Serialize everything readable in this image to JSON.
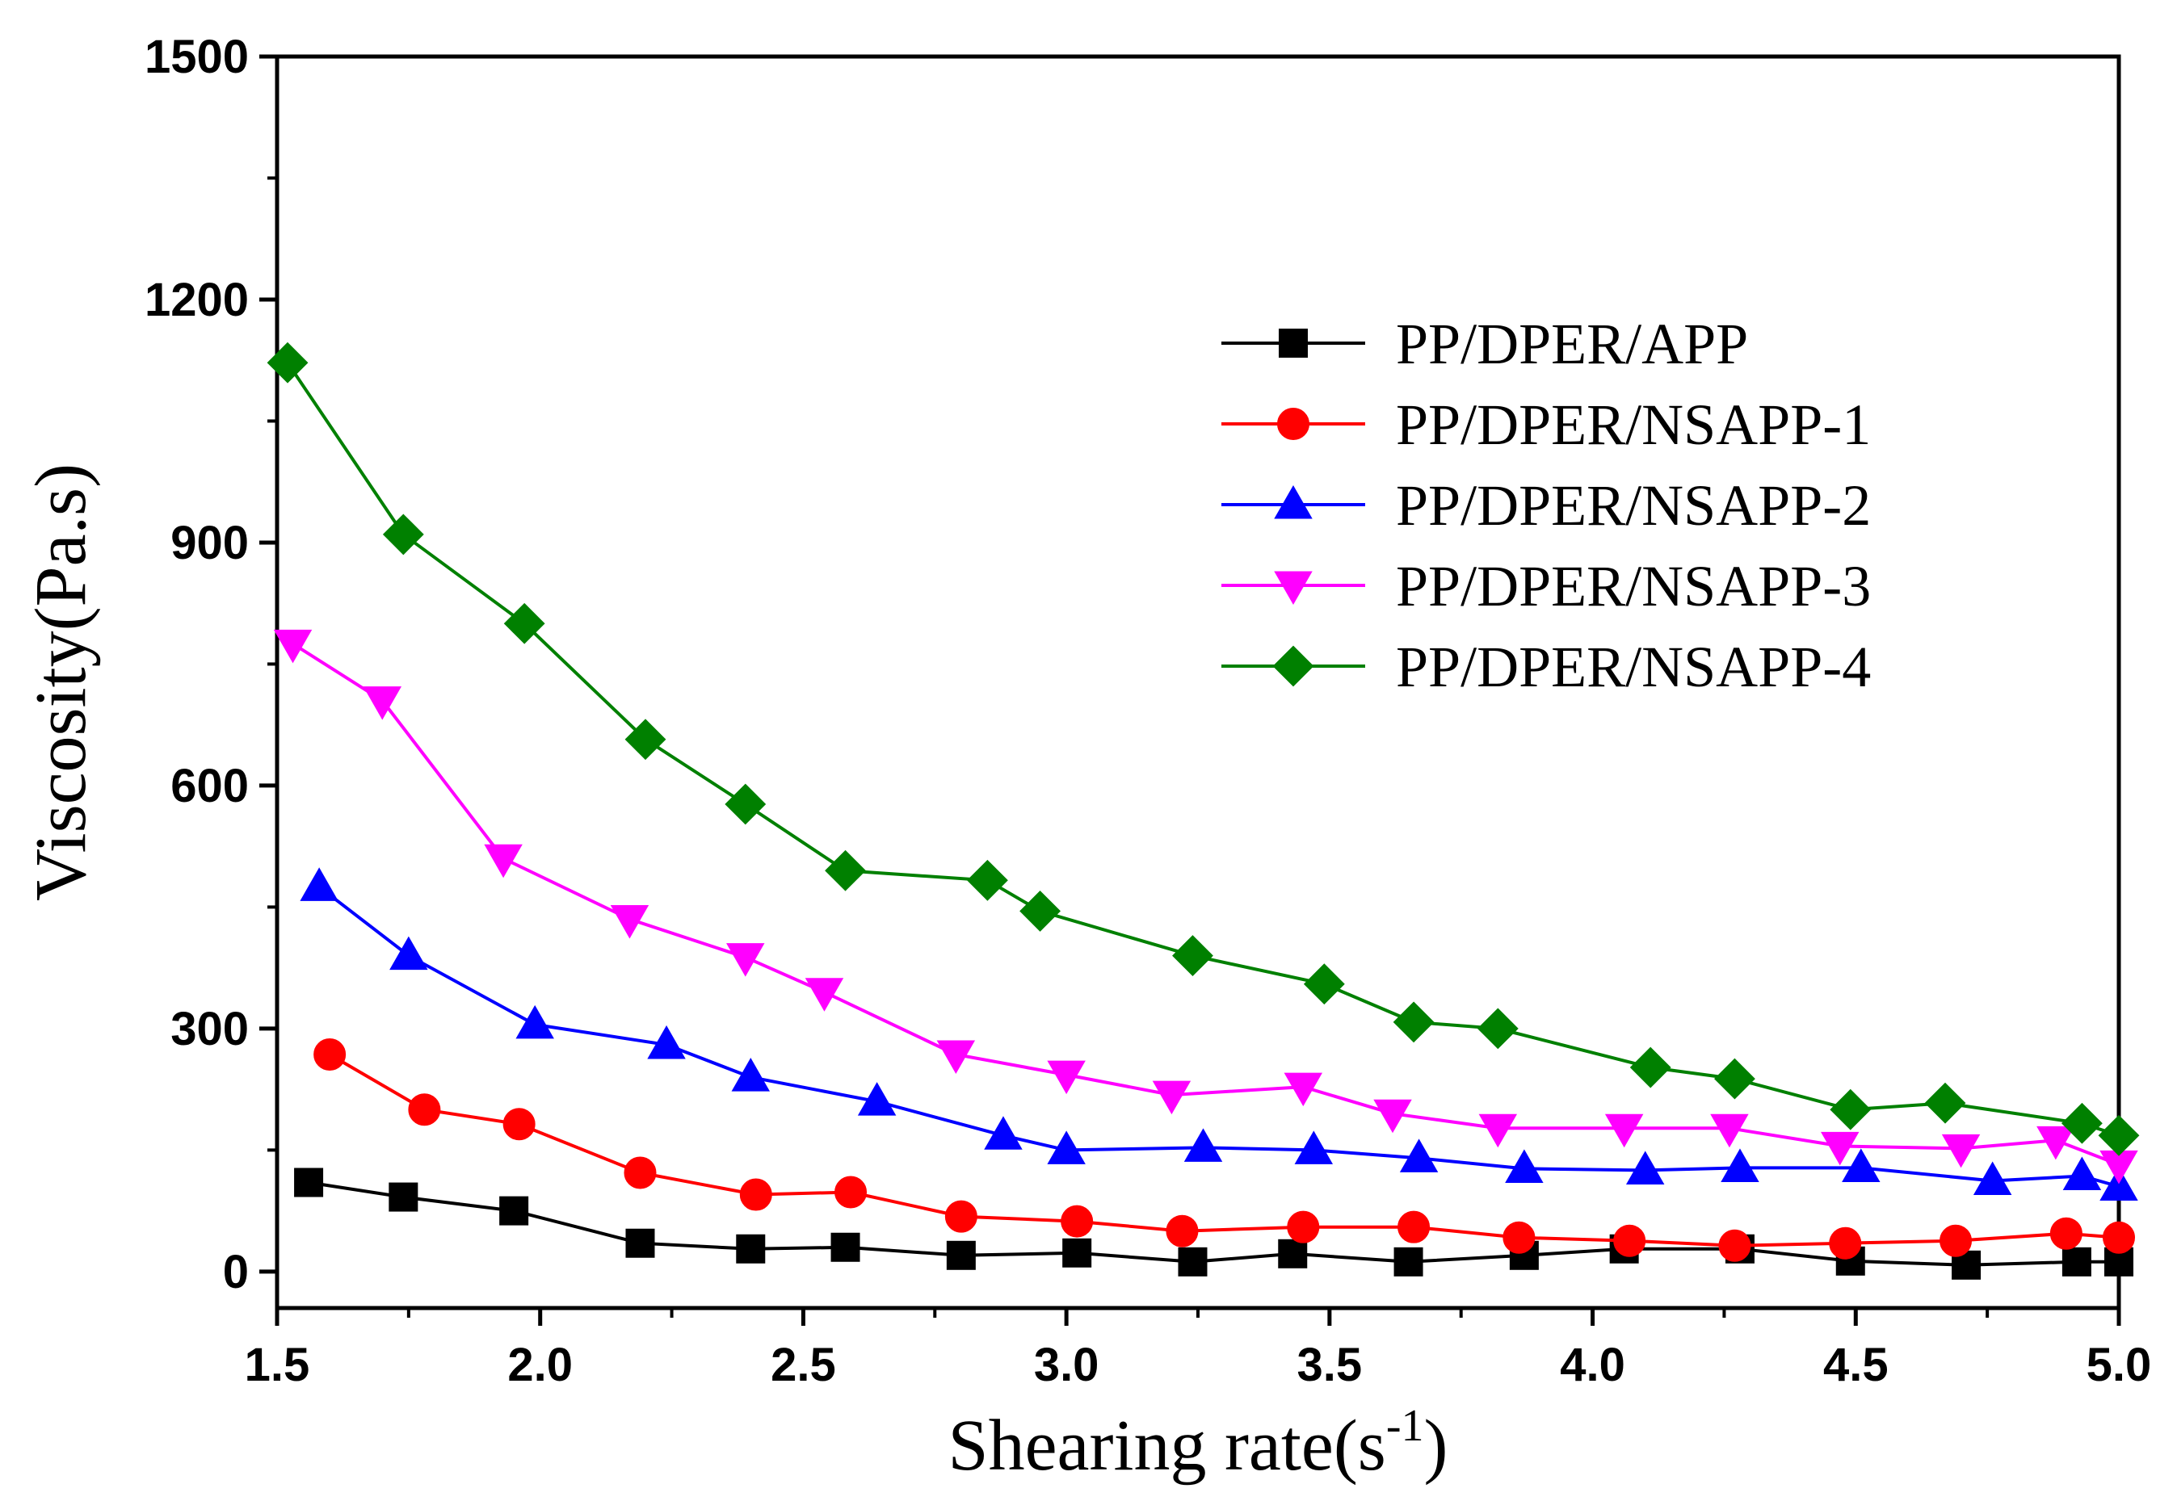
{
  "chart_data": {
    "type": "line",
    "title": "",
    "xlabel": "Shearing rate(s",
    "xlabel_superscript": "-1",
    "xlabel_suffix": ")",
    "ylabel": "Viscosity(Pa.s)",
    "xlim": [
      1.5,
      5.0
    ],
    "ylim": [
      -45,
      1500
    ],
    "xticks": [
      1.5,
      2.0,
      2.5,
      3.0,
      3.5,
      4.0,
      4.5,
      5.0
    ],
    "xtick_labels": [
      "1.5",
      "2.0",
      "2.5",
      "3.0",
      "3.5",
      "4.0",
      "4.5",
      "5.0"
    ],
    "yticks": [
      0,
      300,
      600,
      900,
      1200,
      1500
    ],
    "ytick_labels": [
      "0",
      "300",
      "600",
      "900",
      "1200",
      "1500"
    ],
    "grid": false,
    "legend_position": "upper-right",
    "series": [
      {
        "name": "PP/DPER/APP",
        "color": "#000000",
        "marker": "square",
        "x": [
          1.56,
          1.74,
          1.95,
          2.19,
          2.4,
          2.58,
          2.8,
          3.02,
          3.24,
          3.43,
          3.65,
          3.87,
          4.06,
          4.28,
          4.49,
          4.71,
          4.92,
          5.0
        ],
        "y": [
          110,
          92,
          75,
          35,
          28,
          30,
          20,
          23,
          12,
          22,
          12,
          20,
          28,
          28,
          13,
          8,
          12,
          12
        ]
      },
      {
        "name": "PP/DPER/NSAPP-1",
        "color": "#ff0000",
        "marker": "circle",
        "x": [
          1.6,
          1.78,
          1.96,
          2.19,
          2.41,
          2.59,
          2.8,
          3.02,
          3.22,
          3.45,
          3.66,
          3.86,
          4.07,
          4.27,
          4.48,
          4.69,
          4.9,
          5.0
        ],
        "y": [
          268,
          200,
          182,
          122,
          95,
          98,
          68,
          62,
          50,
          55,
          55,
          42,
          38,
          32,
          35,
          38,
          47,
          42
        ]
      },
      {
        "name": "PP/DPER/NSAPP-2",
        "color": "#0000ff",
        "marker": "triangle-up",
        "x": [
          1.58,
          1.75,
          1.99,
          2.24,
          2.4,
          2.64,
          2.88,
          3.0,
          3.26,
          3.47,
          3.67,
          3.87,
          4.1,
          4.28,
          4.51,
          4.76,
          4.93,
          5.0
        ],
        "y": [
          475,
          390,
          305,
          280,
          240,
          210,
          168,
          150,
          153,
          150,
          140,
          127,
          125,
          128,
          128,
          112,
          118,
          105
        ]
      },
      {
        "name": "PP/DPER/NSAPP-3",
        "color": "#ff00ff",
        "marker": "triangle-down",
        "x": [
          1.53,
          1.7,
          1.93,
          2.17,
          2.39,
          2.54,
          2.79,
          3.0,
          3.2,
          3.45,
          3.62,
          3.82,
          4.06,
          4.26,
          4.47,
          4.7,
          4.88,
          5.0
        ],
        "y": [
          775,
          705,
          510,
          435,
          388,
          345,
          268,
          243,
          218,
          228,
          195,
          177,
          177,
          177,
          155,
          152,
          162,
          132
        ]
      },
      {
        "name": "PP/DPER/NSAPP-4",
        "color": "#008000",
        "marker": "diamond",
        "x": [
          1.52,
          1.74,
          1.97,
          2.2,
          2.39,
          2.58,
          2.85,
          2.95,
          3.24,
          3.49,
          3.66,
          3.82,
          4.11,
          4.27,
          4.49,
          4.67,
          4.93,
          5.0
        ],
        "y": [
          1122,
          910,
          800,
          657,
          577,
          495,
          483,
          445,
          390,
          355,
          308,
          300,
          252,
          238,
          200,
          208,
          183,
          168
        ]
      }
    ]
  }
}
